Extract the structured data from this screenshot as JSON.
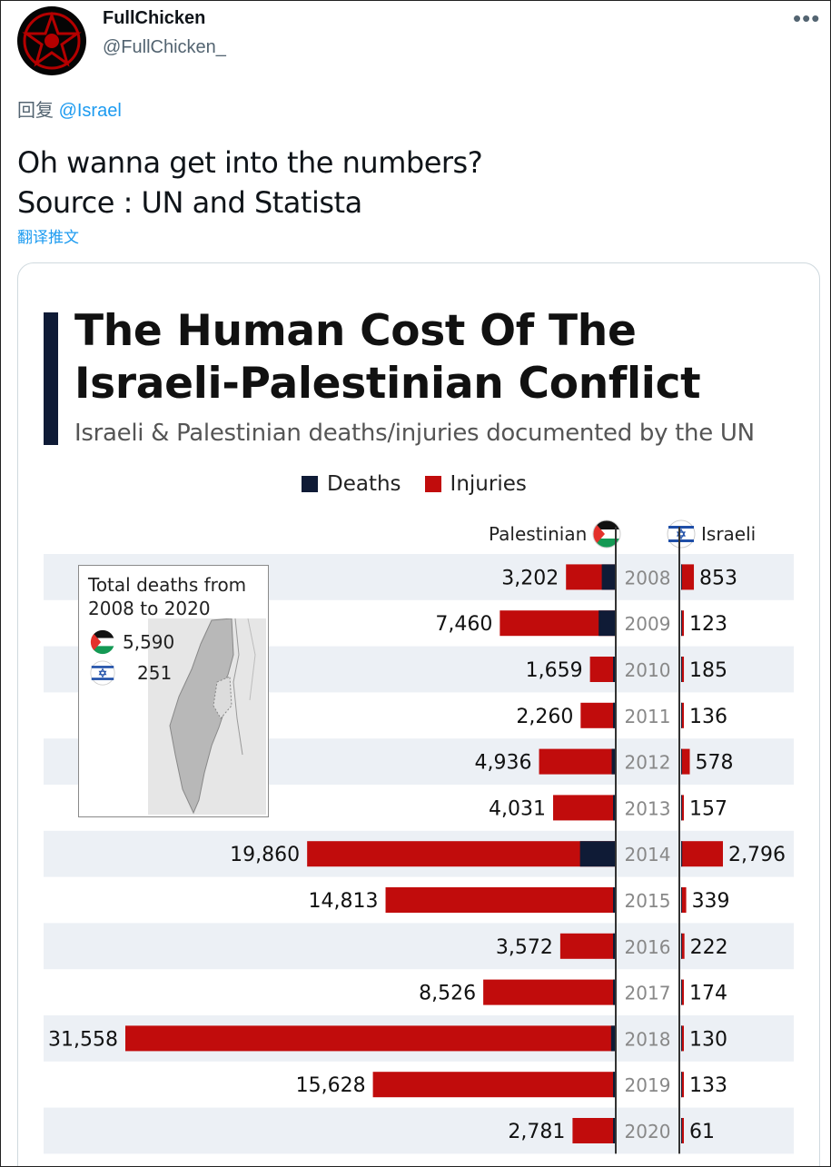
{
  "tweet": {
    "user_name": "FullChicken",
    "user_handle": "@FullChicken_",
    "more_label": "•••",
    "reply_prefix": "回复",
    "reply_mention": "@Israel",
    "text_line1": "Oh wanna get into the numbers?",
    "text_line2": "Source : UN and Statista",
    "translate_label": "翻译推文"
  },
  "colors": {
    "deaths": "#0f1b36",
    "injuries": "#c10c0c",
    "row_band": "#ecf0f5",
    "link": "#1d9bf0"
  },
  "chart_header": {
    "title_line1": "The Human Cost Of The",
    "title_line2": "Israeli-Palestinian Conflict",
    "subtitle": "Israeli & Palestinian deaths/injuries documented by the UN",
    "legend_deaths": "Deaths",
    "legend_injuries": "Injuries",
    "left_group": "Palestinian",
    "right_group": "Israeli",
    "left_flag": "palestine-flag-icon",
    "right_flag": "israel-flag-icon"
  },
  "inset": {
    "title_line1": "Total deaths from",
    "title_line2": "2008 to 2020",
    "palestinian_total": "5,590",
    "israeli_total": "251",
    "map_icon": "israel-map-icon"
  },
  "chart_data": {
    "type": "bar",
    "title": "The Human Cost Of The Israeli-Palestinian Conflict",
    "subtitle": "Israeli & Palestinian deaths/injuries documented by the UN",
    "categories": [
      "2008",
      "2009",
      "2010",
      "2011",
      "2012",
      "2013",
      "2014",
      "2015",
      "2016",
      "2017",
      "2018",
      "2019",
      "2020"
    ],
    "series": [
      {
        "name": "Palestinian",
        "values": [
          3202,
          7460,
          1659,
          2260,
          4936,
          4031,
          19860,
          14813,
          3572,
          8526,
          31558,
          15628,
          2781
        ],
        "labels": [
          "3,202",
          "7,460",
          "1,659",
          "2,260",
          "4,936",
          "4,031",
          "19,860",
          "14,813",
          "3,572",
          "8,526",
          "31,558",
          "15,628",
          "2,781"
        ]
      },
      {
        "name": "Israeli",
        "values": [
          853,
          123,
          185,
          136,
          578,
          157,
          2796,
          339,
          222,
          174,
          130,
          133,
          61
        ],
        "labels": [
          "853",
          "123",
          "185",
          "136",
          "578",
          "157",
          "2,796",
          "339",
          "222",
          "174",
          "130",
          "133",
          "61"
        ]
      }
    ],
    "palestinian_deaths_estimate": [
      900,
      1100,
      90,
      120,
      260,
      40,
      2300,
      30,
      110,
      80,
      300,
      130,
      30
    ],
    "israeli_deaths_estimate": [
      35,
      9,
      9,
      11,
      7,
      6,
      70,
      25,
      17,
      15,
      14,
      10,
      3
    ],
    "legend": [
      "Deaths",
      "Injuries"
    ],
    "legend_position": "top"
  }
}
